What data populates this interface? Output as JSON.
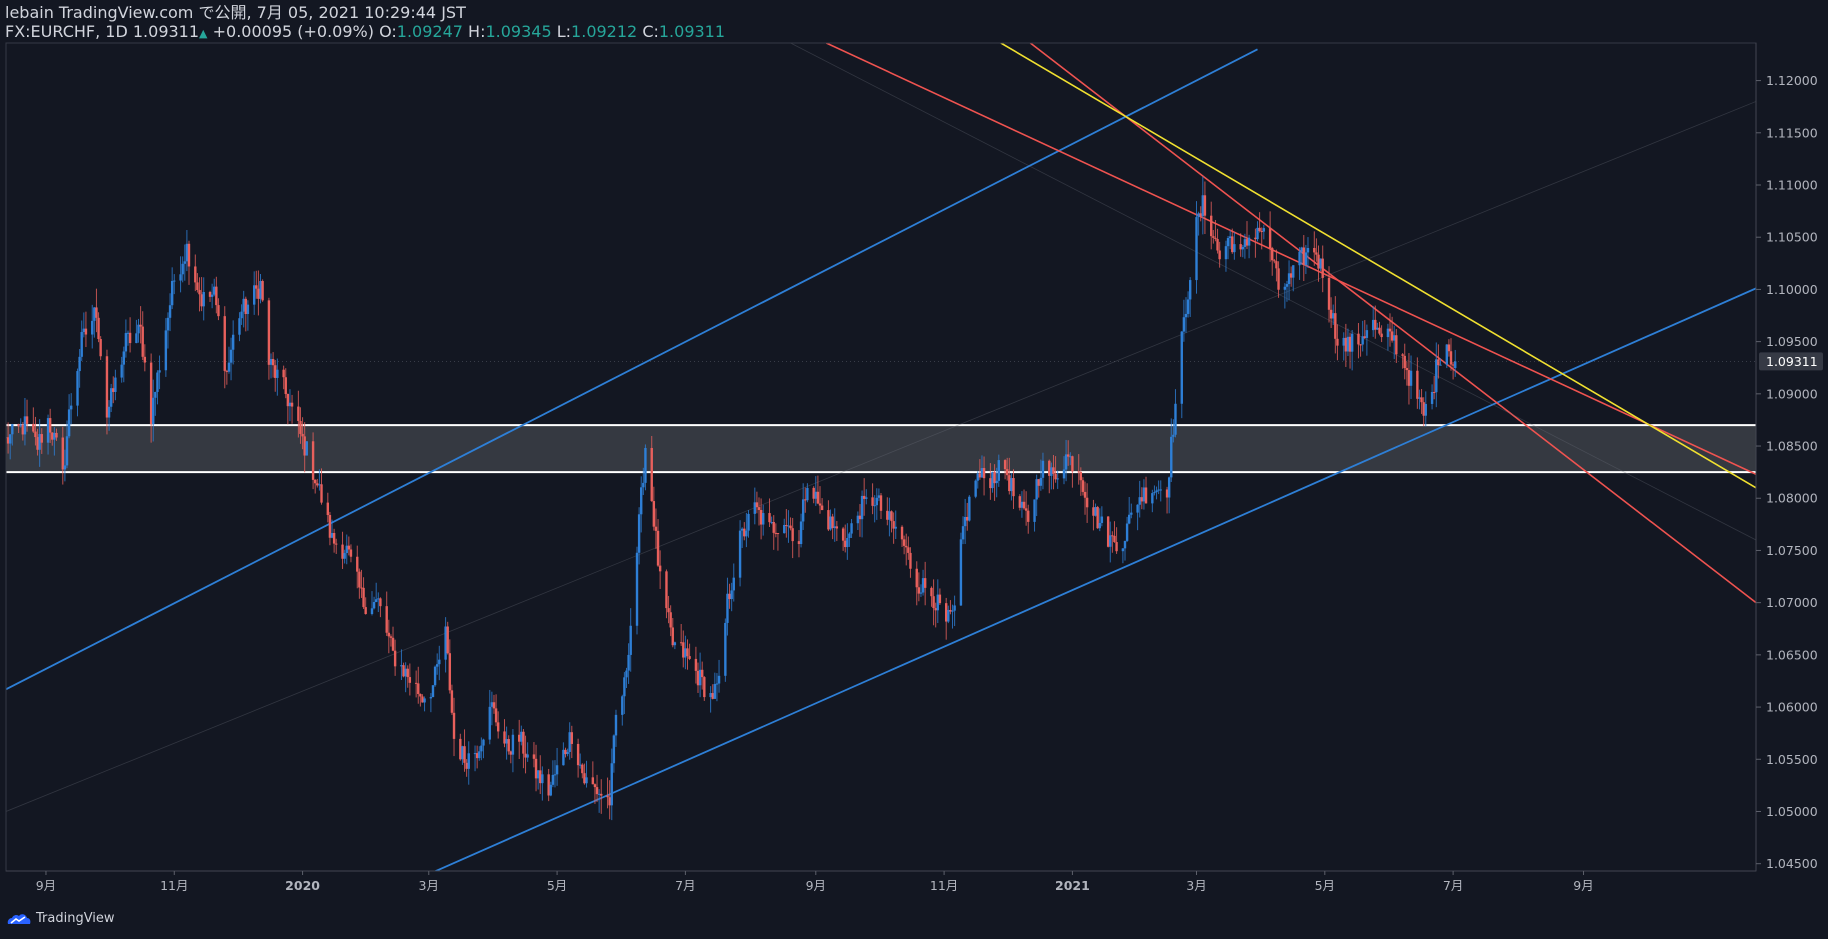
{
  "header": {
    "publisher": "lebain TradingView.com で公開, 7月 05, 2021 10:29:44 JST",
    "symbol": "FX:EURCHF, 1D",
    "last": "1.09311",
    "change": "+0.00095 (+0.09%)",
    "o_label": "O:",
    "o": "1.09247",
    "h_label": "H:",
    "h": "1.09345",
    "l_label": "L:",
    "l": "1.09212",
    "c_label": "C:",
    "c": "1.09311"
  },
  "footer": {
    "brand": "TradingView"
  },
  "colors": {
    "background": "#131722",
    "up": "#2e7fd6",
    "down": "#e8605c",
    "channel_blue": "#2e7fd6",
    "channel_red": "#ef5350",
    "trend_yellow": "#f0e030",
    "zone_fill": "#3a3d45",
    "zone_line": "#ffffff",
    "price_badge": "#363a45"
  },
  "chart_data": {
    "type": "candlestick",
    "symbol": "FX:EURCHF",
    "interval": "1D",
    "ylim": [
      1.0443,
      1.1236
    ],
    "xlim": [
      "2019-08-13",
      "2021-11-22"
    ],
    "y_ticks": [
      "1.04500",
      "1.05000",
      "1.05500",
      "1.06000",
      "1.06500",
      "1.07000",
      "1.07500",
      "1.08000",
      "1.08500",
      "1.09000",
      "1.09500",
      "1.10000",
      "1.10500",
      "1.11000",
      "1.11500",
      "1.12000"
    ],
    "x_ticks": [
      {
        "label": "9月",
        "date": "2019-09-01"
      },
      {
        "label": "11月",
        "date": "2019-11-01"
      },
      {
        "label": "2020",
        "date": "2020-01-01"
      },
      {
        "label": "3月",
        "date": "2020-03-01"
      },
      {
        "label": "5月",
        "date": "2020-05-01"
      },
      {
        "label": "7月",
        "date": "2020-07-01"
      },
      {
        "label": "9月",
        "date": "2020-09-01"
      },
      {
        "label": "11月",
        "date": "2020-11-01"
      },
      {
        "label": "2021",
        "date": "2021-01-01"
      },
      {
        "label": "3月",
        "date": "2021-03-01"
      },
      {
        "label": "5月",
        "date": "2021-05-01"
      },
      {
        "label": "7月",
        "date": "2021-07-01"
      },
      {
        "label": "9月",
        "date": "2021-09-01"
      }
    ],
    "price_path": [
      [
        "2019-08-13",
        1.0855
      ],
      [
        "2019-08-22",
        1.087
      ],
      [
        "2019-08-28",
        1.085
      ],
      [
        "2019-09-02",
        1.0875
      ],
      [
        "2019-09-06",
        1.085
      ],
      [
        "2019-09-09",
        1.082
      ],
      [
        "2019-09-12",
        1.088
      ],
      [
        "2019-09-18",
        1.095
      ],
      [
        "2019-09-25",
        1.098
      ],
      [
        "2019-09-30",
        1.088
      ],
      [
        "2019-10-04",
        1.091
      ],
      [
        "2019-10-09",
        1.095
      ],
      [
        "2019-10-16",
        1.096
      ],
      [
        "2019-10-21",
        1.088
      ],
      [
        "2019-10-26",
        1.094
      ],
      [
        "2019-11-01",
        1.101
      ],
      [
        "2019-11-07",
        1.104
      ],
      [
        "2019-11-14",
        1.099
      ],
      [
        "2019-11-20",
        1.0995
      ],
      [
        "2019-11-26",
        1.092
      ],
      [
        "2019-12-01",
        1.0975
      ],
      [
        "2019-12-06",
        1.0985
      ],
      [
        "2019-12-12",
        1.1005
      ],
      [
        "2019-12-16",
        1.093
      ],
      [
        "2019-12-22",
        1.091
      ],
      [
        "2019-12-26",
        1.089
      ],
      [
        "2019-12-31",
        1.086
      ],
      [
        "2020-01-04",
        1.084
      ],
      [
        "2020-01-10",
        1.08
      ],
      [
        "2020-01-15",
        1.076
      ],
      [
        "2020-01-22",
        1.075
      ],
      [
        "2020-01-30",
        1.07
      ],
      [
        "2020-02-06",
        1.07
      ],
      [
        "2020-02-13",
        1.065
      ],
      [
        "2020-02-20",
        1.063
      ],
      [
        "2020-02-27",
        1.061
      ],
      [
        "2020-03-03",
        1.062
      ],
      [
        "2020-03-09",
        1.067
      ],
      [
        "2020-03-13",
        1.057
      ],
      [
        "2020-03-18",
        1.055
      ],
      [
        "2020-03-24",
        1.056
      ],
      [
        "2020-03-31",
        1.06
      ],
      [
        "2020-04-07",
        1.056
      ],
      [
        "2020-04-13",
        1.057
      ],
      [
        "2020-04-20",
        1.054
      ],
      [
        "2020-04-27",
        1.052
      ],
      [
        "2020-05-04",
        1.0555
      ],
      [
        "2020-05-08",
        1.0575
      ],
      [
        "2020-05-14",
        1.053
      ],
      [
        "2020-05-20",
        1.052
      ],
      [
        "2020-05-26",
        1.051
      ],
      [
        "2020-05-29",
        1.059
      ],
      [
        "2020-06-02",
        1.062
      ],
      [
        "2020-06-06",
        1.07
      ],
      [
        "2020-06-10",
        1.08
      ],
      [
        "2020-06-12",
        1.085
      ],
      [
        "2020-06-15",
        1.08
      ],
      [
        "2020-06-19",
        1.072
      ],
      [
        "2020-06-25",
        1.066
      ],
      [
        "2020-07-01",
        1.065
      ],
      [
        "2020-07-07",
        1.063
      ],
      [
        "2020-07-13",
        1.061
      ],
      [
        "2020-07-17",
        1.062
      ],
      [
        "2020-07-21",
        1.07
      ],
      [
        "2020-07-27",
        1.076
      ],
      [
        "2020-08-03",
        1.079
      ],
      [
        "2020-08-10",
        1.077
      ],
      [
        "2020-08-17",
        1.078
      ],
      [
        "2020-08-24",
        1.076
      ],
      [
        "2020-08-28",
        1.082
      ],
      [
        "2020-09-03",
        1.079
      ],
      [
        "2020-09-10",
        1.077
      ],
      [
        "2020-09-16",
        1.076
      ],
      [
        "2020-09-22",
        1.079
      ],
      [
        "2020-09-29",
        1.08
      ],
      [
        "2020-10-05",
        1.078
      ],
      [
        "2020-10-12",
        1.076
      ],
      [
        "2020-10-19",
        1.072
      ],
      [
        "2020-10-26",
        1.071
      ],
      [
        "2020-11-02",
        1.068
      ],
      [
        "2020-11-06",
        1.069
      ],
      [
        "2020-11-10",
        1.077
      ],
      [
        "2020-11-16",
        1.082
      ],
      [
        "2020-11-23",
        1.082
      ],
      [
        "2020-11-30",
        1.083
      ],
      [
        "2020-12-06",
        1.079
      ],
      [
        "2020-12-11",
        1.078
      ],
      [
        "2020-12-17",
        1.083
      ],
      [
        "2020-12-23",
        1.082
      ],
      [
        "2020-12-29",
        1.084
      ],
      [
        "2021-01-04",
        1.083
      ],
      [
        "2021-01-08",
        1.08
      ],
      [
        "2021-01-13",
        1.078
      ],
      [
        "2021-01-19",
        1.076
      ],
      [
        "2021-01-25",
        1.076
      ],
      [
        "2021-02-01",
        1.08
      ],
      [
        "2021-02-08",
        1.081
      ],
      [
        "2021-02-15",
        1.081
      ],
      [
        "2021-02-18",
        1.087
      ],
      [
        "2021-02-22",
        1.095
      ],
      [
        "2021-02-25",
        1.1
      ],
      [
        "2021-03-01",
        1.106
      ],
      [
        "2021-03-04",
        1.108
      ],
      [
        "2021-03-08",
        1.106
      ],
      [
        "2021-03-12",
        1.103
      ],
      [
        "2021-03-17",
        1.105
      ],
      [
        "2021-03-22",
        1.103
      ],
      [
        "2021-03-26",
        1.105
      ],
      [
        "2021-03-31",
        1.106
      ],
      [
        "2021-04-05",
        1.104
      ],
      [
        "2021-04-09",
        1.1
      ],
      [
        "2021-04-15",
        1.101
      ],
      [
        "2021-04-20",
        1.103
      ],
      [
        "2021-04-26",
        1.104
      ],
      [
        "2021-05-01",
        1.101
      ],
      [
        "2021-05-06",
        1.096
      ],
      [
        "2021-05-11",
        1.0945
      ],
      [
        "2021-05-17",
        1.095
      ],
      [
        "2021-05-23",
        1.097
      ],
      [
        "2021-05-28",
        1.095
      ],
      [
        "2021-06-02",
        1.0955
      ],
      [
        "2021-06-08",
        1.093
      ],
      [
        "2021-06-13",
        1.09
      ],
      [
        "2021-06-17",
        1.088
      ],
      [
        "2021-06-21",
        1.09
      ],
      [
        "2021-06-24",
        1.0935
      ],
      [
        "2021-06-28",
        1.095
      ],
      [
        "2021-07-01",
        1.093
      ],
      [
        "2021-07-02",
        1.09311
      ]
    ],
    "levels": [
      1.087,
      1.0825
    ],
    "trendlines": [
      {
        "style": "blue",
        "from": [
          "2019-08-13",
          1.0617
        ],
        "to": [
          "2021-03-30",
          1.123
        ]
      },
      {
        "style": "blue",
        "from": [
          "2020-03-01",
          1.044
        ],
        "to": [
          "2021-11-22",
          1.1001
        ]
      },
      {
        "style": "red",
        "from": [
          "2020-09-06",
          1.1236
        ],
        "to": [
          "2021-11-22",
          1.0823
        ]
      },
      {
        "style": "red",
        "from": [
          "2020-12-12",
          1.1236
        ],
        "to": [
          "2021-11-22",
          1.07
        ]
      },
      {
        "style": "yellow",
        "from": [
          "2020-11-28",
          1.1236
        ],
        "to": [
          "2021-11-22",
          1.081
        ]
      },
      {
        "style": "faint",
        "from": [
          "2019-08-13",
          1.05
        ],
        "to": [
          "2021-11-22",
          1.118
        ]
      },
      {
        "style": "faint",
        "from": [
          "2020-08-20",
          1.1236
        ],
        "to": [
          "2021-11-22",
          1.076
        ]
      }
    ]
  }
}
